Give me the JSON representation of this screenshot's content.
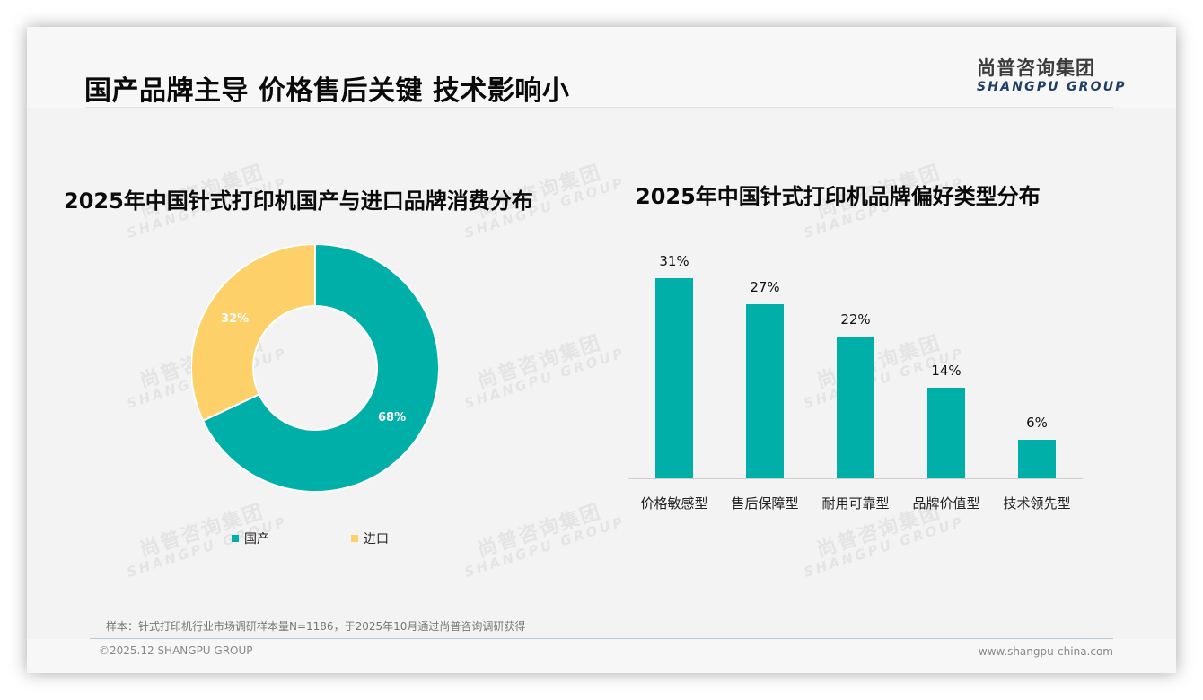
{
  "header": {
    "title": "国产品牌主导 价格售后关键 技术影响小",
    "logo_cn": "尚普咨询集团",
    "logo_en": "SHANGPU GROUP"
  },
  "colors": {
    "teal": "#00afa8",
    "yellow": "#fdd06a",
    "slide_bg": "#f3f3f3",
    "logo_en": "#1e3f66"
  },
  "watermark": {
    "cn": "尚普咨询集团",
    "en": "SHANGPU GROUP"
  },
  "chart_data": [
    {
      "type": "pie",
      "variant": "donut",
      "title": "2025年中国针式打印机国产与进口品牌消费分布",
      "categories": [
        "国产",
        "进口"
      ],
      "values": [
        68,
        32
      ],
      "labels": [
        "68%",
        "32%"
      ],
      "colors": [
        "#00afa8",
        "#fdd06a"
      ],
      "legend": [
        "国产",
        "进口"
      ],
      "legend_position": "bottom"
    },
    {
      "type": "bar",
      "title": "2025年中国针式打印机品牌偏好类型分布",
      "categories": [
        "价格敏感型",
        "售后保障型",
        "耐用可靠型",
        "品牌价值型",
        "技术领先型"
      ],
      "values": [
        31,
        27,
        22,
        14,
        6
      ],
      "labels": [
        "31%",
        "27%",
        "22%",
        "14%",
        "6%"
      ],
      "color": "#00afa8",
      "xlabel": "",
      "ylabel": "",
      "ylim": [
        0,
        31
      ],
      "grid": false,
      "unit": "%"
    }
  ],
  "footer": {
    "note": "样本：针式打印机行业市场调研样本量N=1186，于2025年10月通过尚普咨询调研获得",
    "copyright": "©2025.12 SHANGPU GROUP",
    "website": "www.shangpu-china.com"
  }
}
